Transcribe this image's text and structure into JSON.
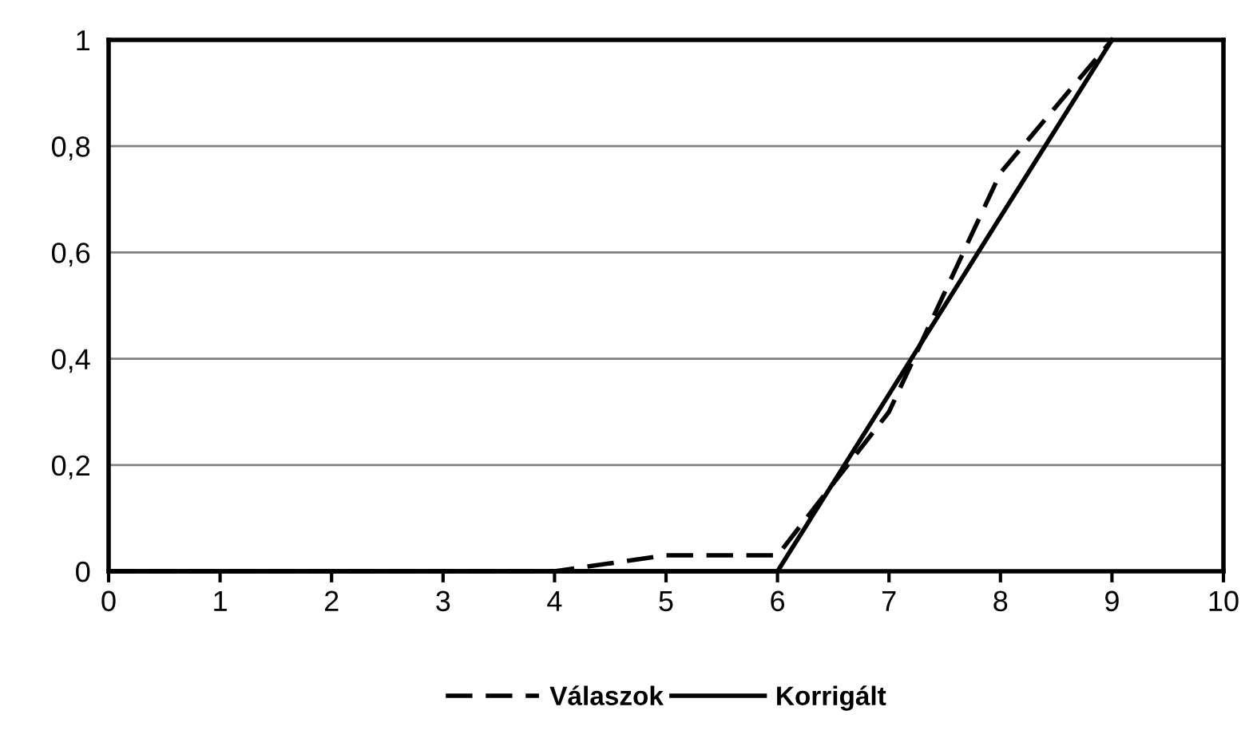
{
  "chart_data": {
    "type": "line",
    "x": [
      0,
      1,
      2,
      3,
      4,
      5,
      6,
      7,
      8,
      9
    ],
    "series": [
      {
        "name": "Válaszok",
        "color": "#000000",
        "line_style": "dashed",
        "values": [
          0,
          0,
          0,
          0,
          0,
          0.03,
          0.03,
          0.3,
          0.75,
          1
        ]
      },
      {
        "name": "Korrigált",
        "color": "#000000",
        "line_style": "solid",
        "values": [
          0,
          0,
          0,
          0,
          0,
          0,
          0,
          0.333,
          0.667,
          1
        ]
      }
    ],
    "xlim": [
      0,
      10
    ],
    "ylim": [
      0,
      1
    ],
    "xticks": [
      0,
      1,
      2,
      3,
      4,
      5,
      6,
      7,
      8,
      9,
      10
    ],
    "yticks": [
      {
        "value": 0,
        "label": "0"
      },
      {
        "value": 0.2,
        "label": "0,2"
      },
      {
        "value": 0.4,
        "label": "0,4"
      },
      {
        "value": 0.6,
        "label": "0,6"
      },
      {
        "value": 0.8,
        "label": "0,8"
      },
      {
        "value": 1,
        "label": "1"
      }
    ],
    "grid": "y",
    "legend": "bottom",
    "marker": "none"
  }
}
